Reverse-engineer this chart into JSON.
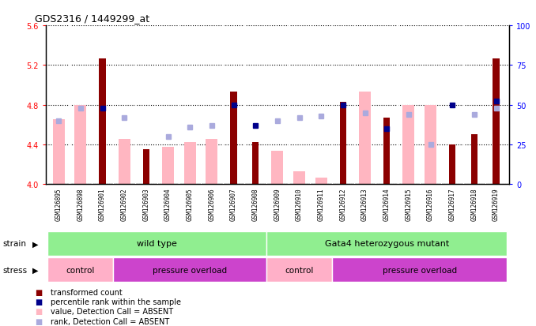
{
  "title": "GDS2316 / 1449299_at",
  "samples": [
    "GSM126895",
    "GSM126898",
    "GSM126901",
    "GSM126902",
    "GSM126903",
    "GSM126904",
    "GSM126905",
    "GSM126906",
    "GSM126907",
    "GSM126908",
    "GSM126909",
    "GSM126910",
    "GSM126911",
    "GSM126912",
    "GSM126913",
    "GSM126914",
    "GSM126915",
    "GSM126916",
    "GSM126917",
    "GSM126918",
    "GSM126919"
  ],
  "transformed_count": [
    null,
    null,
    5.27,
    null,
    4.35,
    null,
    null,
    null,
    4.93,
    4.42,
    null,
    null,
    null,
    4.83,
    null,
    4.67,
    null,
    null,
    4.4,
    4.5,
    5.27
  ],
  "absent_value": [
    4.65,
    4.8,
    null,
    4.45,
    null,
    4.37,
    4.42,
    4.45,
    null,
    null,
    4.33,
    4.13,
    4.06,
    null,
    4.93,
    null,
    4.8,
    4.8,
    null,
    null,
    null
  ],
  "percentile_rank": [
    null,
    null,
    48,
    null,
    null,
    null,
    null,
    null,
    50,
    37,
    null,
    null,
    null,
    50,
    null,
    35,
    null,
    null,
    50,
    null,
    52
  ],
  "absent_rank": [
    40,
    48,
    null,
    42,
    null,
    30,
    36,
    37,
    null,
    null,
    40,
    42,
    43,
    null,
    45,
    null,
    44,
    25,
    null,
    44,
    48
  ],
  "ylim_left": [
    4.0,
    5.6
  ],
  "ylim_right": [
    0,
    100
  ],
  "yticks_left": [
    4.0,
    4.4,
    4.8,
    5.2,
    5.6
  ],
  "yticks_right": [
    0,
    25,
    50,
    75,
    100
  ],
  "bar_color": "#8B0000",
  "absent_bar_color": "#FFB6C1",
  "rank_dot_color": "#00008B",
  "absent_rank_dot_color": "#AAAADD",
  "bg_color": "#D3D3D3",
  "strain_groups": [
    {
      "label": "wild type",
      "start": 0,
      "end": 10
    },
    {
      "label": "Gata4 heterozygous mutant",
      "start": 10,
      "end": 21
    }
  ],
  "strain_color": "#90EE90",
  "stress_groups": [
    {
      "label": "control",
      "start": 0,
      "end": 3,
      "color": "#FFB0C8"
    },
    {
      "label": "pressure overload",
      "start": 3,
      "end": 10,
      "color": "#CC44CC"
    },
    {
      "label": "control",
      "start": 10,
      "end": 13,
      "color": "#FFB0C8"
    },
    {
      "label": "pressure overload",
      "start": 13,
      "end": 21,
      "color": "#CC44CC"
    }
  ],
  "legend_items": [
    {
      "label": "transformed count",
      "color": "#8B0000"
    },
    {
      "label": "percentile rank within the sample",
      "color": "#00008B"
    },
    {
      "label": "value, Detection Call = ABSENT",
      "color": "#FFB6C1"
    },
    {
      "label": "rank, Detection Call = ABSENT",
      "color": "#AAAADD"
    }
  ]
}
